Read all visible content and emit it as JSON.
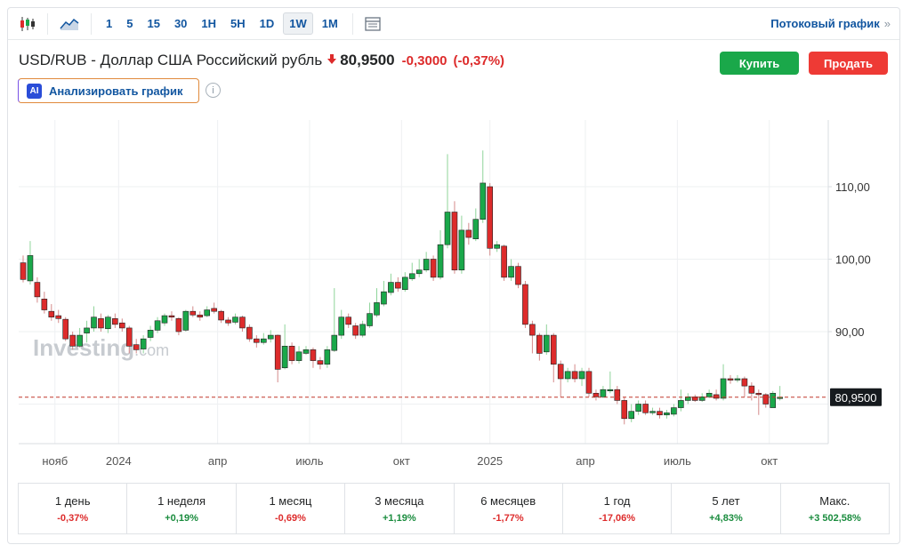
{
  "toolbar": {
    "chart_type_icon": "candlestick-icon",
    "area_icon": "area-chart-icon",
    "periods": [
      "1",
      "5",
      "15",
      "30",
      "1H",
      "5H",
      "1D",
      "1W",
      "1M"
    ],
    "active_period": "1W",
    "table_icon": "table-icon",
    "stream_label": "Потоковый график",
    "stream_chevron": "»"
  },
  "header": {
    "pair": "USD/RUB - Доллар США Российский рубль",
    "direction_icon": "down-arrow-icon",
    "price": "80,9500",
    "change": "-0,3000",
    "change_pct": "(-0,37%)",
    "buy_label": "Купить",
    "sell_label": "Продать",
    "ai_badge": "AI",
    "ai_label": "Анализировать график",
    "info_glyph": "i",
    "colors": {
      "up": "#1aa84a",
      "down": "#dd2b2b",
      "link": "#1256a0"
    }
  },
  "watermark": {
    "brand": "Investing",
    "suffix": ".com"
  },
  "chart_data": {
    "type": "candlestick",
    "interval": "1W",
    "last_price": 80.95,
    "last_price_label": "80,9500",
    "y_ticks": [
      "90,00",
      "100,00",
      "110,00"
    ],
    "y_tick_values": [
      90,
      100,
      110
    ],
    "ylim": [
      75,
      120
    ],
    "x_ticks": [
      "нояб",
      "2024",
      "апр",
      "июль",
      "окт",
      "2025",
      "апр",
      "июль",
      "окт"
    ],
    "x_tick_weeks": [
      4.5,
      13.5,
      27.5,
      40.5,
      53.5,
      66,
      79.5,
      92.5,
      105.5
    ],
    "grid": true,
    "candles": [
      [
        99.5,
        97.2,
        100.5,
        96.8
      ],
      [
        97.0,
        100.5,
        102.5,
        96.5
      ],
      [
        96.8,
        94.8,
        97.5,
        94.0
      ],
      [
        94.5,
        93.0,
        95.5,
        92.5
      ],
      [
        92.8,
        92.0,
        93.8,
        91.5
      ],
      [
        92.2,
        91.8,
        93.0,
        91.2
      ],
      [
        91.7,
        89.0,
        92.0,
        88.7
      ],
      [
        89.5,
        88.0,
        90.0,
        87.5
      ],
      [
        88.0,
        89.5,
        90.5,
        87.8
      ],
      [
        89.8,
        90.5,
        91.5,
        88.5
      ],
      [
        90.5,
        92.0,
        93.5,
        90.0
      ],
      [
        91.8,
        90.5,
        92.5,
        90.0
      ],
      [
        90.4,
        92.0,
        92.3,
        89.8
      ],
      [
        91.8,
        91.0,
        92.5,
        90.5
      ],
      [
        91.2,
        90.5,
        91.8,
        90.0
      ],
      [
        90.5,
        88.0,
        90.8,
        87.0
      ],
      [
        88.2,
        87.5,
        89.0,
        87.0
      ],
      [
        87.6,
        89.0,
        89.5,
        87.0
      ],
      [
        89.2,
        90.2,
        90.8,
        88.7
      ],
      [
        90.2,
        91.5,
        92.0,
        89.8
      ],
      [
        91.2,
        92.2,
        92.5,
        90.8
      ],
      [
        92.2,
        92.0,
        92.8,
        91.5
      ],
      [
        91.8,
        90.0,
        92.0,
        89.5
      ],
      [
        90.2,
        92.8,
        93.0,
        90.0
      ],
      [
        92.8,
        92.3,
        93.5,
        92.0
      ],
      [
        92.3,
        92.0,
        92.8,
        91.5
      ],
      [
        92.2,
        93.0,
        93.5,
        92.0
      ],
      [
        93.2,
        92.8,
        94.0,
        92.5
      ],
      [
        92.8,
        91.6,
        93.0,
        91.2
      ],
      [
        91.6,
        91.2,
        92.0,
        90.8
      ],
      [
        91.3,
        92.0,
        92.5,
        91.0
      ],
      [
        92.0,
        90.5,
        92.2,
        90.0
      ],
      [
        90.6,
        89.0,
        91.0,
        88.6
      ],
      [
        89.0,
        88.5,
        89.5,
        87.8
      ],
      [
        88.5,
        89.0,
        89.8,
        88.2
      ],
      [
        89.0,
        89.5,
        90.2,
        88.5
      ],
      [
        89.5,
        84.8,
        89.6,
        83.0
      ],
      [
        85.0,
        88.0,
        91.0,
        84.8
      ],
      [
        88.0,
        86.0,
        88.5,
        85.5
      ],
      [
        86.0,
        87.2,
        88.0,
        85.6
      ],
      [
        87.0,
        87.5,
        88.0,
        86.8
      ],
      [
        87.5,
        86.0,
        87.8,
        85.0
      ],
      [
        86.0,
        85.5,
        86.5,
        84.8
      ],
      [
        85.5,
        87.5,
        88.0,
        85.0
      ],
      [
        87.4,
        89.5,
        96.0,
        87.2
      ],
      [
        89.5,
        92.0,
        93.0,
        89.0
      ],
      [
        92.0,
        91.0,
        92.5,
        90.5
      ],
      [
        90.8,
        89.5,
        91.2,
        89.0
      ],
      [
        89.5,
        91.0,
        91.5,
        89.2
      ],
      [
        90.8,
        92.5,
        94.0,
        90.5
      ],
      [
        92.3,
        94.0,
        96.0,
        92.0
      ],
      [
        93.8,
        95.5,
        97.0,
        93.5
      ],
      [
        95.4,
        96.8,
        98.0,
        95.0
      ],
      [
        96.8,
        96.0,
        97.5,
        95.5
      ],
      [
        95.8,
        97.5,
        98.2,
        95.5
      ],
      [
        97.3,
        98.0,
        99.5,
        97.0
      ],
      [
        98.0,
        98.5,
        100.0,
        97.5
      ],
      [
        98.5,
        100.0,
        101.0,
        98.2
      ],
      [
        100.0,
        97.5,
        100.5,
        97.0
      ],
      [
        97.5,
        102.0,
        104.0,
        97.2
      ],
      [
        102.0,
        106.5,
        114.5,
        101.5
      ],
      [
        106.5,
        98.5,
        108.0,
        98.0
      ],
      [
        98.5,
        104.0,
        106.0,
        98.0
      ],
      [
        104.0,
        103.0,
        105.0,
        102.0
      ],
      [
        102.8,
        105.5,
        107.0,
        102.5
      ],
      [
        105.5,
        110.5,
        115.0,
        105.0
      ],
      [
        110.0,
        101.5,
        110.5,
        100.5
      ],
      [
        101.5,
        102.0,
        102.5,
        101.0
      ],
      [
        101.8,
        97.5,
        102.0,
        97.0
      ],
      [
        97.5,
        99.0,
        100.0,
        97.0
      ],
      [
        99.0,
        96.5,
        99.5,
        96.0
      ],
      [
        96.5,
        91.0,
        97.0,
        90.5
      ],
      [
        91.0,
        89.5,
        91.5,
        87.0
      ],
      [
        89.5,
        87.0,
        89.8,
        86.0
      ],
      [
        87.2,
        89.5,
        91.0,
        86.8
      ],
      [
        89.5,
        85.5,
        89.8,
        83.0
      ],
      [
        85.5,
        83.5,
        86.0,
        81.0
      ],
      [
        83.5,
        84.5,
        85.0,
        83.0
      ],
      [
        84.5,
        83.5,
        85.5,
        83.0
      ],
      [
        83.5,
        84.5,
        85.0,
        82.5
      ],
      [
        84.5,
        81.5,
        85.0,
        81.0
      ],
      [
        81.5,
        81.0,
        82.0,
        80.5
      ],
      [
        81.0,
        82.0,
        82.5,
        80.8
      ],
      [
        82.0,
        82.0,
        84.5,
        81.5
      ],
      [
        82.0,
        80.5,
        82.5,
        80.0
      ],
      [
        80.5,
        78.0,
        81.0,
        77.2
      ],
      [
        78.0,
        79.0,
        80.0,
        77.5
      ],
      [
        79.0,
        80.0,
        80.5,
        78.5
      ],
      [
        80.0,
        78.8,
        80.5,
        78.5
      ],
      [
        78.8,
        79.0,
        79.5,
        78.5
      ],
      [
        79.0,
        78.5,
        79.5,
        78.0
      ],
      [
        78.5,
        78.8,
        79.2,
        78.0
      ],
      [
        78.6,
        79.5,
        80.0,
        78.3
      ],
      [
        79.5,
        80.5,
        82.0,
        79.0
      ],
      [
        80.5,
        81.0,
        81.5,
        80.0
      ],
      [
        81.0,
        80.5,
        81.3,
        80.3
      ],
      [
        80.5,
        81.0,
        81.5,
        80.3
      ],
      [
        81.0,
        81.5,
        82.0,
        80.8
      ],
      [
        81.3,
        80.8,
        82.0,
        80.5
      ],
      [
        80.8,
        83.5,
        85.5,
        80.5
      ],
      [
        83.5,
        83.3,
        84.0,
        82.8
      ],
      [
        83.4,
        83.5,
        84.0,
        83.0
      ],
      [
        83.5,
        82.5,
        83.8,
        81.0
      ],
      [
        82.5,
        81.5,
        83.0,
        80.5
      ],
      [
        81.5,
        81.3,
        82.0,
        78.5
      ],
      [
        81.3,
        80.0,
        81.5,
        79.5
      ],
      [
        79.5,
        81.5,
        81.8,
        79.5
      ],
      [
        80.9,
        80.95,
        82.5,
        80.5
      ]
    ]
  },
  "stats": [
    {
      "label": "1 день",
      "value": "-0,37%",
      "sign": "neg"
    },
    {
      "label": "1 неделя",
      "value": "+0,19%",
      "sign": "pos"
    },
    {
      "label": "1 месяц",
      "value": "-0,69%",
      "sign": "neg"
    },
    {
      "label": "3 месяца",
      "value": "+1,19%",
      "sign": "pos"
    },
    {
      "label": "6 месяцев",
      "value": "-1,77%",
      "sign": "neg"
    },
    {
      "label": "1 год",
      "value": "-17,06%",
      "sign": "neg"
    },
    {
      "label": "5 лет",
      "value": "+4,83%",
      "sign": "pos"
    },
    {
      "label": "Макс.",
      "value": "+3 502,58%",
      "sign": "pos"
    }
  ]
}
